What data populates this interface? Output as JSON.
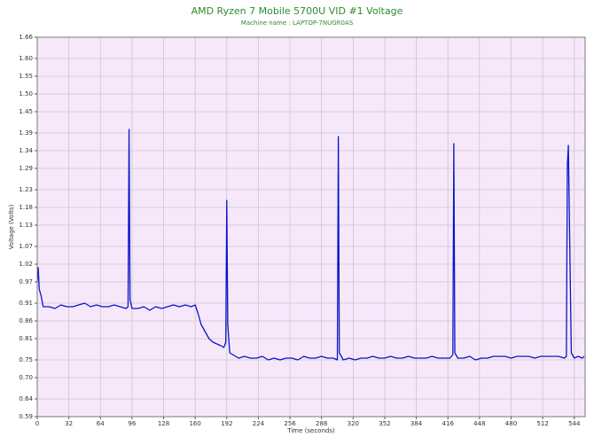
{
  "chart_data": {
    "type": "line",
    "title": "AMD Ryzen 7 Mobile 5700U VID #1 Voltage",
    "subtitle": "Machine name : LAPTOP-7NUGR0AS",
    "x_label": "Time (seconds)",
    "y_label": "Voltage (Volts)",
    "color": "#0a14c8",
    "grid": true,
    "xlim": [
      0,
      555
    ],
    "ylim": [
      0.59,
      1.66
    ],
    "xticks": [
      0,
      32,
      64,
      96,
      128,
      160,
      192,
      224,
      256,
      288,
      320,
      352,
      384,
      416,
      448,
      480,
      512,
      544
    ],
    "yticks": [
      0.59,
      0.64,
      {
        "value": 0.7,
        "label": "0.70"
      },
      0.75,
      0.81,
      0.86,
      0.91,
      0.97,
      1.02,
      1.07,
      1.13,
      1.18,
      1.23,
      1.29,
      1.34,
      1.39,
      1.45,
      {
        "value": 1.5,
        "label": "1.50"
      },
      1.55,
      {
        "value": 1.6,
        "label": "1.60"
      },
      1.66
    ],
    "x": [
      0,
      1,
      2,
      4,
      6,
      12,
      18,
      24,
      30,
      36,
      42,
      48,
      54,
      60,
      66,
      72,
      78,
      84,
      90,
      92,
      93,
      94,
      96,
      102,
      108,
      114,
      120,
      126,
      132,
      138,
      144,
      150,
      156,
      160,
      163,
      166,
      170,
      174,
      178,
      182,
      186,
      189,
      191,
      192,
      193,
      195,
      198,
      204,
      210,
      216,
      222,
      228,
      234,
      240,
      246,
      252,
      258,
      264,
      270,
      276,
      282,
      288,
      294,
      300,
      304,
      305,
      306,
      310,
      316,
      322,
      328,
      334,
      340,
      346,
      352,
      358,
      364,
      370,
      376,
      382,
      388,
      394,
      400,
      406,
      412,
      418,
      421,
      422,
      423,
      426,
      432,
      438,
      444,
      450,
      456,
      462,
      468,
      474,
      480,
      486,
      492,
      498,
      504,
      510,
      516,
      522,
      528,
      534,
      536,
      537,
      538,
      541,
      544,
      548,
      552,
      554
    ],
    "values": [
      0.97,
      1.01,
      0.95,
      0.93,
      0.9,
      0.9,
      0.895,
      0.905,
      0.9,
      0.9,
      0.905,
      0.91,
      0.9,
      0.905,
      0.9,
      0.9,
      0.905,
      0.9,
      0.895,
      0.9,
      1.4,
      0.92,
      0.895,
      0.895,
      0.9,
      0.89,
      0.9,
      0.895,
      0.9,
      0.905,
      0.9,
      0.905,
      0.9,
      0.905,
      0.88,
      0.85,
      0.83,
      0.81,
      0.8,
      0.795,
      0.79,
      0.785,
      0.8,
      1.2,
      0.85,
      0.77,
      0.765,
      0.755,
      0.76,
      0.755,
      0.755,
      0.76,
      0.75,
      0.755,
      0.75,
      0.755,
      0.755,
      0.75,
      0.76,
      0.755,
      0.755,
      0.76,
      0.755,
      0.755,
      0.75,
      1.38,
      0.77,
      0.75,
      0.755,
      0.75,
      0.755,
      0.755,
      0.76,
      0.755,
      0.755,
      0.76,
      0.755,
      0.755,
      0.76,
      0.755,
      0.755,
      0.755,
      0.76,
      0.755,
      0.755,
      0.755,
      0.765,
      1.36,
      0.77,
      0.755,
      0.755,
      0.76,
      0.75,
      0.755,
      0.755,
      0.76,
      0.76,
      0.76,
      0.755,
      0.76,
      0.76,
      0.76,
      0.755,
      0.76,
      0.76,
      0.76,
      0.76,
      0.755,
      0.76,
      1.3,
      1.355,
      0.77,
      0.755,
      0.76,
      0.755,
      0.76
    ]
  }
}
